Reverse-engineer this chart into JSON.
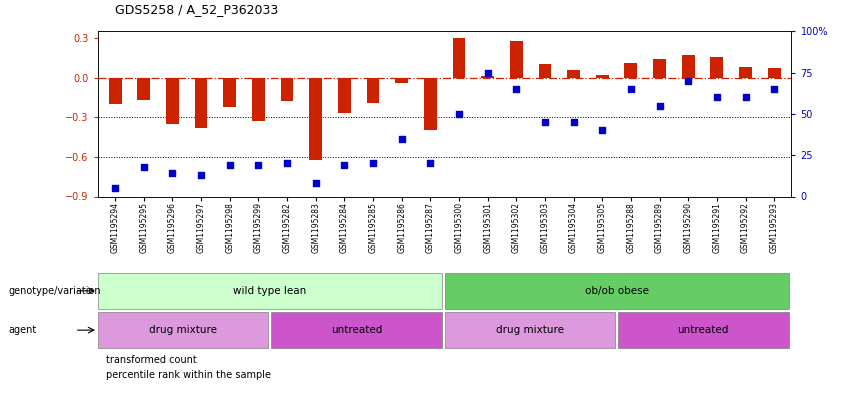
{
  "title": "GDS5258 / A_52_P362033",
  "samples": [
    "GSM1195294",
    "GSM1195295",
    "GSM1195296",
    "GSM1195297",
    "GSM1195298",
    "GSM1195299",
    "GSM1195282",
    "GSM1195283",
    "GSM1195284",
    "GSM1195285",
    "GSM1195286",
    "GSM1195287",
    "GSM1195300",
    "GSM1195301",
    "GSM1195302",
    "GSM1195303",
    "GSM1195304",
    "GSM1195305",
    "GSM1195288",
    "GSM1195289",
    "GSM1195290",
    "GSM1195291",
    "GSM1195292",
    "GSM1195293"
  ],
  "bar_values": [
    -0.2,
    -0.17,
    -0.35,
    -0.38,
    -0.22,
    -0.33,
    -0.18,
    -0.62,
    -0.27,
    -0.19,
    -0.04,
    -0.4,
    0.3,
    0.01,
    0.28,
    0.1,
    0.06,
    0.02,
    0.11,
    0.14,
    0.17,
    0.16,
    0.08,
    0.07
  ],
  "percentile_values": [
    5,
    18,
    14,
    13,
    19,
    19,
    20,
    8,
    19,
    20,
    35,
    20,
    50,
    75,
    65,
    45,
    45,
    40,
    65,
    55,
    70,
    60,
    60,
    65
  ],
  "bar_color": "#cc2200",
  "scatter_color": "#0000cc",
  "hline_color": "#cc2200",
  "dot_line_color": "black",
  "ylim_left": [
    -0.9,
    0.35
  ],
  "ylim_right": [
    0,
    100
  ],
  "yticks_left": [
    -0.9,
    -0.6,
    -0.3,
    0.0,
    0.3
  ],
  "yticks_right": [
    0,
    25,
    50,
    75,
    100
  ],
  "group_info": {
    "genotype_label": "genotype/variation",
    "agent_label": "agent",
    "groups": [
      {
        "name": "wild type lean",
        "start": 0,
        "end": 11,
        "color": "#ccffcc"
      },
      {
        "name": "ob/ob obese",
        "start": 12,
        "end": 23,
        "color": "#66cc66"
      }
    ],
    "agents": [
      {
        "name": "drug mixture",
        "start": 0,
        "end": 5,
        "color": "#dd99dd"
      },
      {
        "name": "untreated",
        "start": 6,
        "end": 11,
        "color": "#cc55cc"
      },
      {
        "name": "drug mixture",
        "start": 12,
        "end": 17,
        "color": "#dd99dd"
      },
      {
        "name": "untreated",
        "start": 18,
        "end": 23,
        "color": "#cc55cc"
      }
    ]
  },
  "legend": [
    {
      "label": "transformed count",
      "color": "#cc2200"
    },
    {
      "label": "percentile rank within the sample",
      "color": "#0000cc"
    }
  ]
}
